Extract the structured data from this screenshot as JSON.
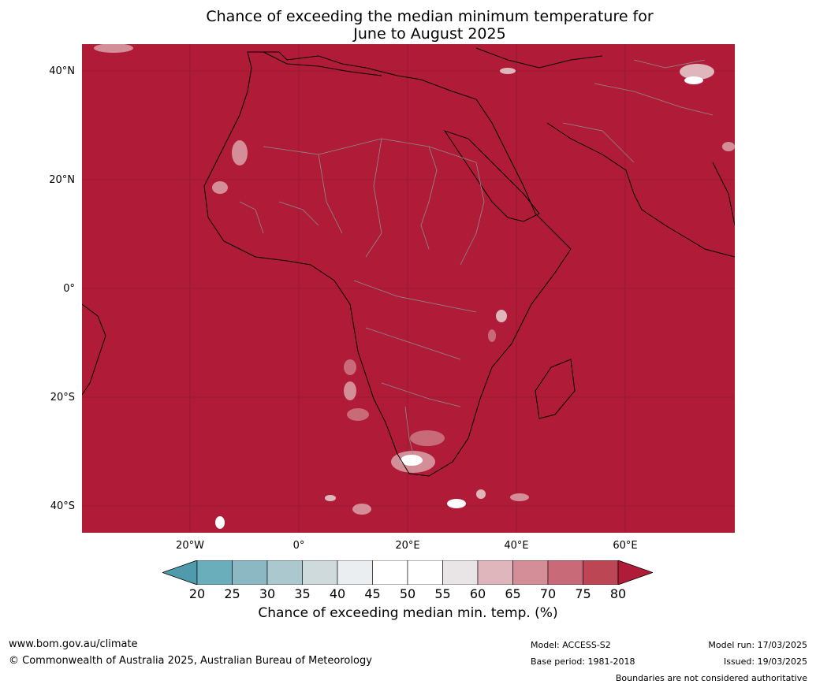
{
  "title_line1": "Chance of exceeding the median minimum temperature for",
  "title_line2": "June to August 2025",
  "lat_labels": [
    "40°N",
    "20°N",
    "0°",
    "20°S",
    "40°S"
  ],
  "lon_labels": [
    "20°W",
    "0°",
    "20°E",
    "40°E",
    "60°E"
  ],
  "colorbar": {
    "ticks": [
      "20",
      "25",
      "30",
      "35",
      "40",
      "45",
      "50",
      "55",
      "60",
      "65",
      "70",
      "75",
      "80"
    ],
    "colors": [
      "#4f9aab",
      "#6aaebb",
      "#8cb8c3",
      "#aac8cd",
      "#cfdadc",
      "#eaeef0",
      "#ffffff",
      "#ffffff",
      "#e9e4e6",
      "#e0b6bd",
      "#d48e98",
      "#c86a77",
      "#bd4655",
      "#b01c38"
    ],
    "label": "Chance of exceeding median min. temp. (%)"
  },
  "map": {
    "dominant_color": "#b01c38",
    "border_color": "#888888",
    "coast_color": "#000000"
  },
  "footer": {
    "url": "www.bom.gov.au/climate",
    "copyright": "© Commonwealth of Australia 2025, Australian Bureau of Meteorology",
    "model": "Model: ACCESS-S2",
    "base_period": "Base period: 1981-2018",
    "model_run": "Model run: 17/03/2025",
    "issued": "Issued: 19/03/2025",
    "disclaimer": "Boundaries are not considered authoritative"
  }
}
